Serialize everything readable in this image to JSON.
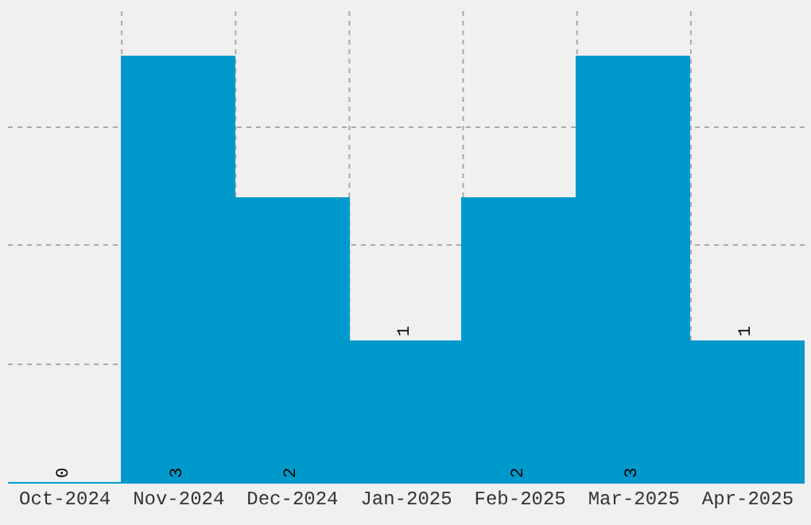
{
  "chart_data": {
    "type": "bar",
    "categories": [
      "Oct-2024",
      "Nov-2024",
      "Dec-2024",
      "Jan-2025",
      "Feb-2025",
      "Mar-2025",
      "Apr-2025"
    ],
    "values": [
      0,
      3,
      2,
      1,
      2,
      3,
      1
    ],
    "color": "#0099cc",
    "data_labels": true,
    "grid": true,
    "tick_labels": "x",
    "ylim": [
      0,
      3.35
    ],
    "yticks": [
      {
        "value": 0.84,
        "label": null
      },
      {
        "value": 1.68,
        "label": null
      },
      {
        "value": 2.51,
        "label": null
      }
    ]
  }
}
